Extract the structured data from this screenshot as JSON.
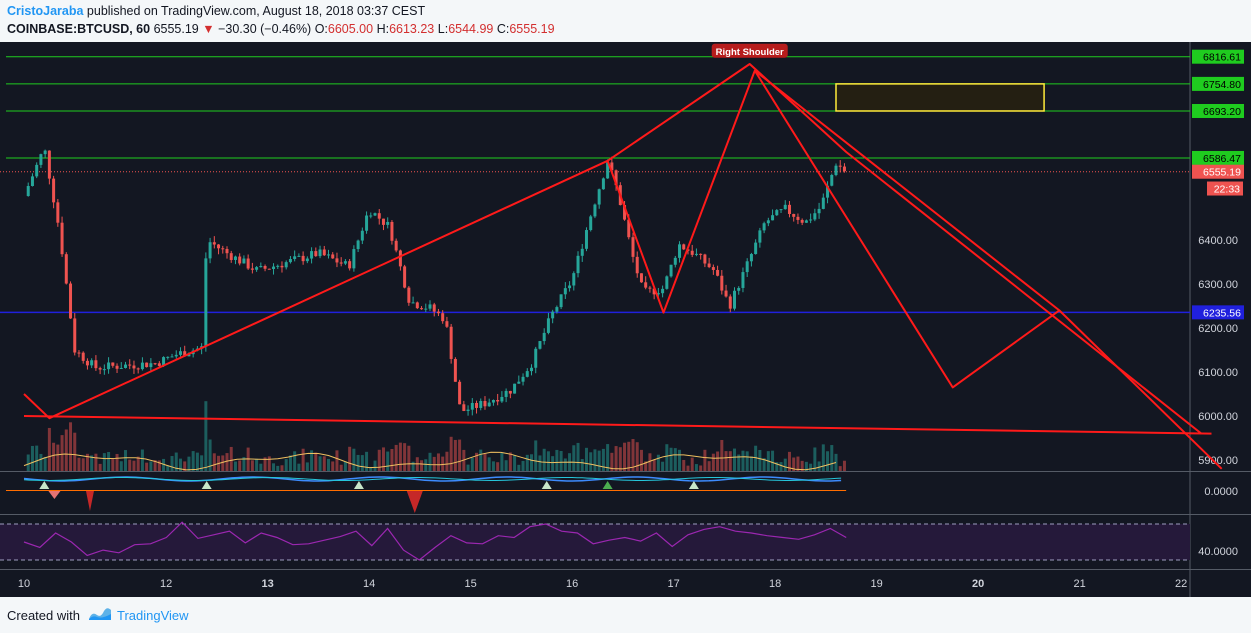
{
  "header": {
    "author": "CristoJaraba",
    "published_text": " published on TradingView.com, August 18, 2018 03:37 CEST",
    "symbol": "COINBASE:BTCUSD, 60",
    "last": "6555.19",
    "change": "−30.30 (−0.46%)",
    "open_label": "O:",
    "open": "6605.00",
    "high_label": "H:",
    "high": "6613.23",
    "low_label": "L:",
    "low": "6544.99",
    "close_label": "C:",
    "close": "6555.19"
  },
  "footer": {
    "created_with": "Created with",
    "brand": "TradingView"
  },
  "colors": {
    "background": "#131722",
    "up": "#26a69a",
    "down": "#ef5350",
    "pattern": "#ff1a1a",
    "level": "#1fcc1f",
    "support": "#2020dd",
    "rsi": "#9b27b0",
    "highlight": "#ffeb3b"
  },
  "chart_data": {
    "type": "line",
    "title": "",
    "xlabel": "",
    "ylabel": "",
    "x_ticks": [
      "10",
      "12",
      "13",
      "14",
      "15",
      "16",
      "17",
      "18",
      "19",
      "20",
      "21",
      "22"
    ],
    "x_ticks_bold": [
      "13",
      "20"
    ],
    "ylim": [
      5875,
      6850
    ],
    "y_ticks": [
      5900,
      6000,
      6100,
      6200,
      6300,
      6400
    ],
    "y_tick_labels": [
      "5900.00",
      "6000.00",
      "6100.00",
      "6200.00",
      "6300.00",
      "6400.00"
    ],
    "price_labels": [
      {
        "label": "6816.61",
        "value": 6816.61,
        "kind": "level"
      },
      {
        "label": "6754.80",
        "value": 6754.8,
        "kind": "level"
      },
      {
        "label": "6693.20",
        "value": 6693.2,
        "kind": "level"
      },
      {
        "label": "6586.47",
        "value": 6586.47,
        "kind": "level"
      },
      {
        "label": "6555.19",
        "value": 6555.19,
        "kind": "last"
      },
      {
        "label": "22:33",
        "value": 6517,
        "kind": "timer"
      },
      {
        "label": "6235.56",
        "value": 6235.56,
        "kind": "support"
      }
    ],
    "horizontal_levels": [
      6816.61,
      6754.8,
      6693.2,
      6586.47
    ],
    "support_level": 6235.56,
    "target_box": {
      "x_from": 18.0,
      "x_to": 20.05,
      "y_low": 6693.2,
      "y_high": 6754.8
    },
    "annotation": {
      "text": "Right Shoulder",
      "x": 17.15,
      "y": 6830
    },
    "close_series": {
      "x": [
        10.0,
        10.2,
        10.35,
        10.5,
        10.7,
        11.0,
        11.3,
        11.5,
        11.75,
        11.8,
        12.0,
        12.3,
        12.6,
        12.9,
        13.2,
        13.4,
        13.6,
        13.8,
        14.0,
        14.15,
        14.3,
        14.55,
        14.8,
        15.0,
        15.2,
        15.4,
        15.6,
        15.75,
        15.85,
        16.0,
        16.1,
        16.3,
        16.45,
        16.6,
        16.8,
        16.95,
        17.1,
        17.3,
        17.5,
        17.7,
        17.85,
        18.0,
        18.1
      ],
      "y": [
        6500,
        6610,
        6420,
        6150,
        6110,
        6115,
        6120,
        6140,
        6155,
        6400,
        6370,
        6330,
        6350,
        6370,
        6340,
        6470,
        6430,
        6260,
        6245,
        6220,
        6010,
        6030,
        6060,
        6120,
        6230,
        6310,
        6470,
        6580,
        6510,
        6360,
        6280,
        6290,
        6390,
        6370,
        6330,
        6250,
        6330,
        6440,
        6470,
        6440,
        6475,
        6575,
        6555
      ]
    },
    "pattern_lines": [
      {
        "x": [
          10.0,
          10.25,
          15.75,
          17.15,
          18.1,
          21.6
        ],
        "y": [
          6050,
          5995,
          6580,
          6800,
          6600,
          5960
        ]
      },
      {
        "x": [
          10.0,
          21.7
        ],
        "y": [
          6000,
          5960
        ]
      },
      {
        "x": [
          15.75,
          16.3,
          17.2,
          19.15,
          20.2,
          21.8
        ],
        "y": [
          6580,
          6235,
          6785,
          6065,
          6240,
          5880
        ]
      },
      {
        "x": [
          17.2,
          20.2
        ],
        "y": [
          6785,
          6240
        ]
      }
    ]
  },
  "panels": {
    "indicator_value": "0.0000",
    "rsi_value": "40.0000",
    "rsi_overbought": 70,
    "rsi_oversold": 30,
    "rsi_range": [
      20,
      80
    ],
    "rsi_series": [
      50,
      44,
      60,
      50,
      35,
      41,
      38,
      47,
      48,
      55,
      72,
      54,
      58,
      62,
      49,
      60,
      55,
      47,
      48,
      52,
      56,
      62,
      46,
      65,
      41,
      30,
      44,
      57,
      49,
      48,
      57,
      55,
      67,
      70,
      62,
      60,
      48,
      52,
      55,
      51,
      60,
      45,
      58,
      64,
      67,
      62,
      60,
      57,
      55,
      53,
      58,
      65,
      55
    ]
  }
}
